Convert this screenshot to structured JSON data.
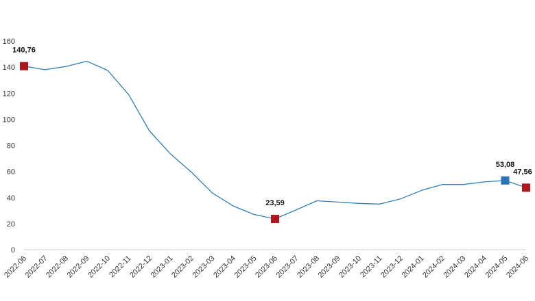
{
  "chart_data": {
    "type": "line",
    "title": "",
    "xlabel": "",
    "ylabel": "",
    "ylim": [
      0,
      160
    ],
    "yticks": [
      0,
      20,
      40,
      60,
      80,
      100,
      120,
      140,
      160
    ],
    "grid": false,
    "categories": [
      "2022-06",
      "2022-07",
      "2022-08",
      "2022-09",
      "2022-10",
      "2022-11",
      "2022-12",
      "2023-01",
      "2023-02",
      "2023-03",
      "2023-04",
      "2023-05",
      "2023-06",
      "2023-07",
      "2023-08",
      "2023-09",
      "2023-10",
      "2023-11",
      "2023-12",
      "2024-01",
      "2024-02",
      "2024-03",
      "2024-04",
      "2024-05",
      "2024-06"
    ],
    "series": [
      {
        "values": [
          140.76,
          138.0,
          140.5,
          144.5,
          137.5,
          119.0,
          91.0,
          73.5,
          59.5,
          43.5,
          33.5,
          27.0,
          23.59,
          30.5,
          37.5,
          36.5,
          35.5,
          35.0,
          39.0,
          45.5,
          50.0,
          50.0,
          52.0,
          53.08,
          47.56
        ],
        "color": "#2f7fbc"
      }
    ],
    "highlights": [
      {
        "category": "2022-06",
        "value": 140.76,
        "label": "140,76",
        "color": "#b0161b"
      },
      {
        "category": "2023-06",
        "value": 23.59,
        "label": "23,59",
        "color": "#b0161b"
      },
      {
        "category": "2024-05",
        "value": 53.08,
        "label": "53,08",
        "color": "#2e73b5"
      },
      {
        "category": "2024-06",
        "value": 47.56,
        "label": "47,56",
        "color": "#b0161b"
      }
    ]
  }
}
